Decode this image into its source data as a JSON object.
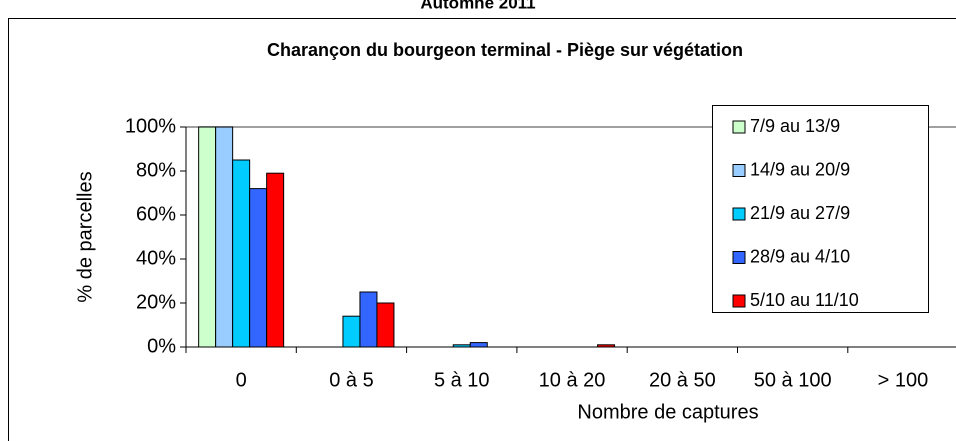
{
  "chart_data": {
    "type": "bar",
    "suptitle": "Automne 2011",
    "title": "Charançon du bourgeon terminal - Piège sur végétation",
    "xlabel": "Nombre de captures",
    "ylabel": "% de parcelles",
    "categories": [
      "0",
      "0 à 5",
      "5 à 10",
      "10 à 20",
      "20 à 50",
      "50 à 100",
      "> 100"
    ],
    "series": [
      {
        "name": "7/9 au 13/9",
        "color": "#ccffcc",
        "values": [
          100,
          0,
          0,
          0,
          0,
          0,
          0
        ]
      },
      {
        "name": "14/9 au 20/9",
        "color": "#99ccff",
        "values": [
          100,
          0,
          0,
          0,
          0,
          0,
          0
        ]
      },
      {
        "name": "21/9 au 27/9",
        "color": "#00ccff",
        "values": [
          85,
          14,
          1,
          0,
          0,
          0,
          0
        ]
      },
      {
        "name": "28/9 au 4/10",
        "color": "#3366ff",
        "values": [
          72,
          25,
          2,
          0,
          0,
          0,
          0
        ]
      },
      {
        "name": "5/10 au 11/10",
        "color": "#ff0000",
        "values": [
          79,
          20,
          0,
          1,
          0,
          0,
          0
        ]
      }
    ],
    "ylim": [
      0,
      100
    ],
    "yticks": [
      {
        "value": 0,
        "label": "0%"
      },
      {
        "value": 20,
        "label": "20%"
      },
      {
        "value": 40,
        "label": "40%"
      },
      {
        "value": 60,
        "label": "60%"
      },
      {
        "value": 80,
        "label": "80%"
      },
      {
        "value": 100,
        "label": "100%"
      }
    ],
    "legend": "upper right"
  }
}
